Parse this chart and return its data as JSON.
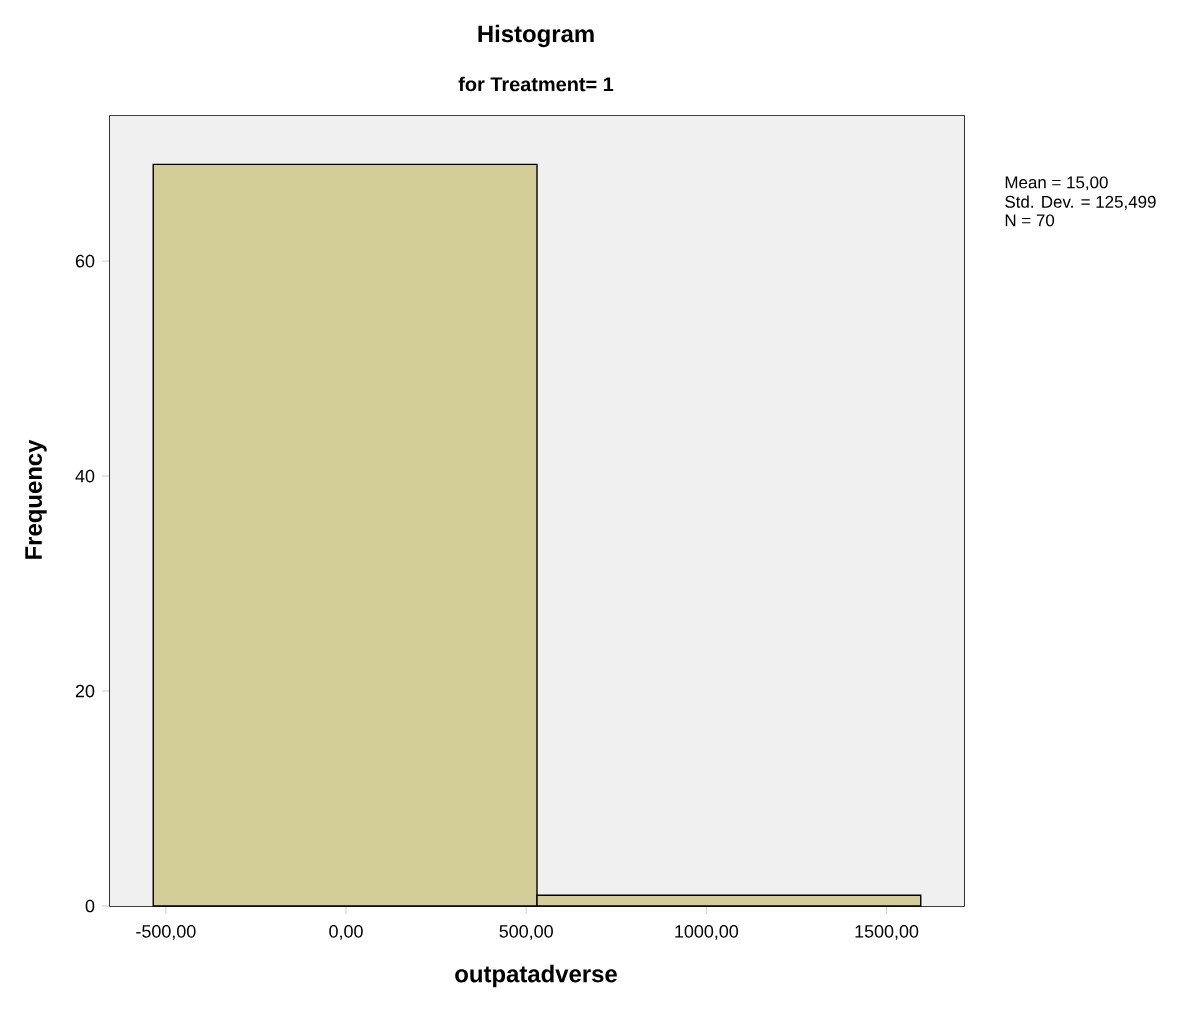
{
  "chart_data": {
    "type": "histogram",
    "title": "Histogram",
    "subtitle": "for Treatment= 1",
    "xlabel": "outpatadverse",
    "ylabel": "Frequency",
    "bins": [
      -535,
      530,
      1595
    ],
    "values": [
      69,
      1
    ],
    "color": "#d3cd98",
    "xlim": [
      -655,
      1715
    ],
    "ylim": [
      0,
      73.5
    ],
    "xticks": [
      {
        "value": -500,
        "label": "-500,00"
      },
      {
        "value": 0,
        "label": "0,00"
      },
      {
        "value": 500,
        "label": "500,00"
      },
      {
        "value": 1000,
        "label": "1000,00"
      },
      {
        "value": 1500,
        "label": "1500,00"
      }
    ],
    "yticks": [
      0,
      20,
      40,
      60
    ],
    "annotations": [
      "Mean = 15,00",
      "Std. Dev. = 125,499",
      "N = 70"
    ]
  }
}
